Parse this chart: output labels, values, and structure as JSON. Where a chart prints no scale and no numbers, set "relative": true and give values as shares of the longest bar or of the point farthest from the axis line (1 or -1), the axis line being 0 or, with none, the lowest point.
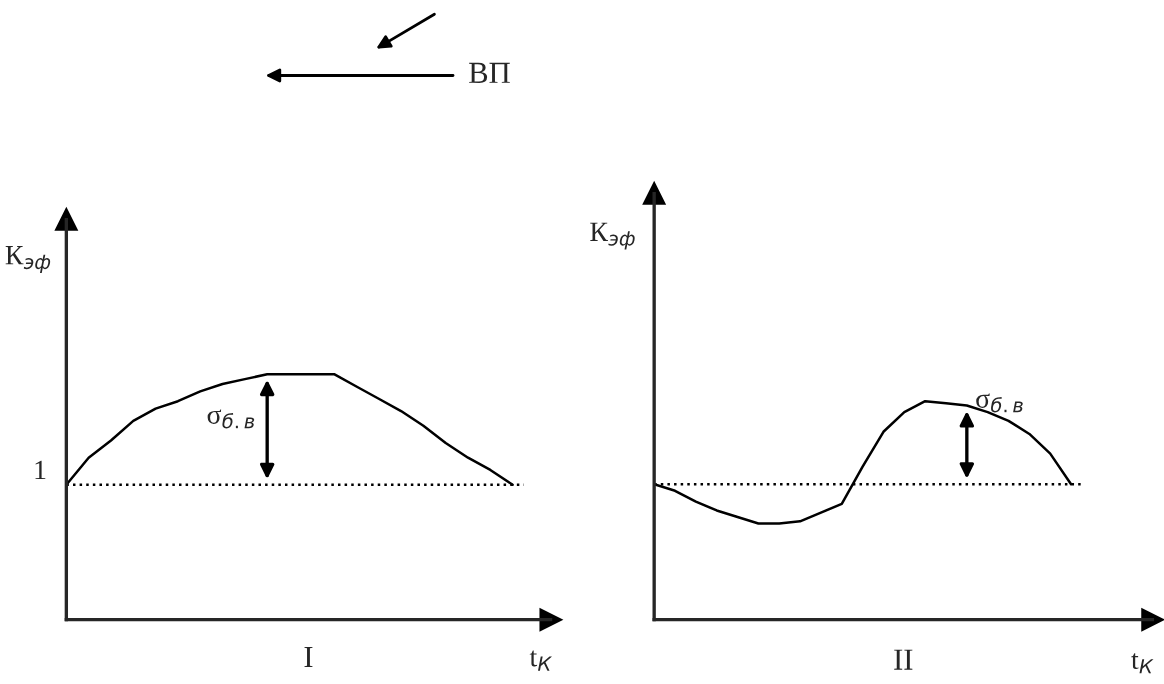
{
  "chart_data": [
    {
      "type": "line",
      "relative": true,
      "ylabel": "К$_{эф}$",
      "xlabel": "t$_{К}$",
      "color": "#000000",
      "categories": [
        null,
        null,
        null,
        null,
        null,
        null,
        null,
        null,
        null,
        null,
        null,
        null,
        null,
        null,
        null,
        null,
        null,
        null,
        null,
        null,
        null
      ],
      "values": [
        0.55,
        0.66,
        0.73,
        0.81,
        0.86,
        0.89,
        0.93,
        0.96,
        0.98,
        1,
        1,
        1,
        1,
        0.95,
        0.9,
        0.85,
        0.79,
        0.72,
        0.66,
        0.61,
        0.55
      ],
      "ref_lines": [
        {
          "axis": "y",
          "value": 0.55,
          "label": "1",
          "line_style": "dotted"
        }
      ],
      "annotations": [
        "σ$_{б.в}$",
        "I",
        "ВП"
      ]
    },
    {
      "type": "line",
      "relative": true,
      "ylabel": "К$_{эф}$",
      "xlabel": "t$_{К}$",
      "color": "#000000",
      "categories": [
        null,
        null,
        null,
        null,
        null,
        null,
        null,
        null,
        null,
        null,
        null,
        null,
        null,
        null,
        null,
        null,
        null,
        null,
        null,
        null,
        null
      ],
      "values": [
        0.62,
        0.59,
        0.54,
        0.5,
        0.47,
        0.44,
        0.44,
        0.45,
        0.49,
        0.53,
        0.7,
        0.86,
        0.95,
        1,
        0.99,
        0.98,
        0.95,
        0.91,
        0.85,
        0.76,
        0.62
      ],
      "ref_lines": [
        {
          "axis": "y",
          "value": 0.62,
          "line_style": "dotted"
        }
      ],
      "annotations": [
        "σ$_{б.в}$",
        "II"
      ]
    }
  ]
}
